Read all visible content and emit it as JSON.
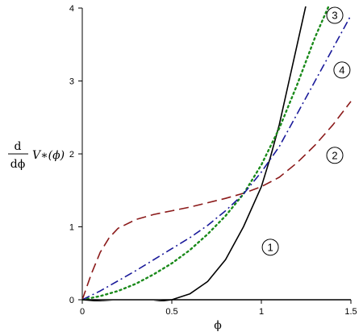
{
  "chart_data": {
    "type": "line",
    "xlabel": "ϕ",
    "ylabel": {
      "numerator": "d",
      "denominator": "dϕ",
      "expression": "V∗(ϕ)"
    },
    "xlim": [
      0,
      1.5
    ],
    "ylim": [
      0,
      4
    ],
    "x_ticks": [
      {
        "value": 0,
        "label": "0"
      },
      {
        "value": 0.5,
        "label": "0.5"
      },
      {
        "value": 1,
        "label": "1"
      },
      {
        "value": 1.5,
        "label": "1.5"
      }
    ],
    "y_ticks": [
      {
        "value": 0,
        "label": "0"
      },
      {
        "value": 1,
        "label": "1"
      },
      {
        "value": 2,
        "label": "2"
      },
      {
        "value": 3,
        "label": "3"
      },
      {
        "value": 4,
        "label": "4"
      }
    ],
    "grid": false,
    "series": [
      {
        "name": "1",
        "color": "#000000",
        "style": "solid",
        "x": [
          0,
          0.1,
          0.2,
          0.3,
          0.4,
          0.5,
          0.6,
          0.7,
          0.8,
          0.9,
          1.0,
          1.05,
          1.1,
          1.15,
          1.2,
          1.25
        ],
        "y": [
          0,
          -0.02,
          -0.035,
          -0.04,
          -0.03,
          0,
          0.08,
          0.25,
          0.55,
          1.0,
          1.55,
          1.95,
          2.4,
          2.95,
          3.5,
          4.05
        ],
        "label_point": {
          "x": 1.05,
          "y": 0.72
        }
      },
      {
        "name": "2",
        "color": "#8b1a1a",
        "style": "dash",
        "x": [
          0,
          0.05,
          0.1,
          0.15,
          0.2,
          0.3,
          0.4,
          0.5,
          0.6,
          0.7,
          0.8,
          0.9,
          1.0,
          1.1,
          1.2,
          1.3,
          1.4,
          1.5
        ],
        "y": [
          0,
          0.35,
          0.65,
          0.85,
          0.98,
          1.1,
          1.17,
          1.22,
          1.27,
          1.33,
          1.39,
          1.46,
          1.55,
          1.68,
          1.88,
          2.12,
          2.4,
          2.72
        ],
        "label_point": {
          "x": 1.41,
          "y": 1.98
        }
      },
      {
        "name": "3",
        "color": "#1a8a1a",
        "style": "dot",
        "x": [
          0,
          0.1,
          0.2,
          0.3,
          0.4,
          0.5,
          0.6,
          0.7,
          0.8,
          0.9,
          1.0,
          1.1,
          1.2,
          1.3,
          1.38
        ],
        "y": [
          0,
          0.05,
          0.12,
          0.22,
          0.35,
          0.5,
          0.68,
          0.9,
          1.15,
          1.45,
          1.85,
          2.35,
          2.95,
          3.6,
          4.05
        ],
        "label_point": {
          "x": 1.41,
          "y": 3.9
        }
      },
      {
        "name": "4",
        "color": "#1a1a9a",
        "style": "dashdot",
        "x": [
          0,
          0.1,
          0.2,
          0.3,
          0.4,
          0.5,
          0.6,
          0.7,
          0.8,
          0.9,
          1.0,
          1.1,
          1.2,
          1.3,
          1.4,
          1.5
        ],
        "y": [
          0,
          0.12,
          0.26,
          0.4,
          0.55,
          0.7,
          0.85,
          1.02,
          1.22,
          1.45,
          1.75,
          2.1,
          2.55,
          3.0,
          3.45,
          3.9
        ],
        "label_point": {
          "x": 1.45,
          "y": 3.15
        }
      },
      {
        "name": "",
        "color": "#000000",
        "style": "solid",
        "x": [
          0,
          1.5
        ],
        "y": [
          0,
          0
        ]
      }
    ]
  }
}
